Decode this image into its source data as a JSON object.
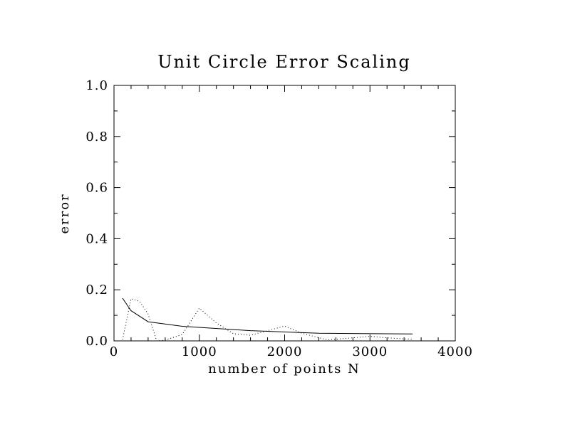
{
  "chart_data": {
    "type": "line",
    "title": "Unit Circle Error Scaling",
    "xlabel": "number of points N",
    "ylabel": "error",
    "xlim": [
      0,
      4000
    ],
    "ylim": [
      0.0,
      1.0
    ],
    "x_ticks": [
      0,
      1000,
      2000,
      3000,
      4000
    ],
    "x_tick_labels": [
      "0",
      "1000",
      "2000",
      "3000",
      "4000"
    ],
    "y_ticks": [
      0.0,
      0.2,
      0.4,
      0.6,
      0.8,
      1.0
    ],
    "y_tick_labels": [
      "0.0",
      "0.2",
      "0.4",
      "0.6",
      "0.8",
      "1.0"
    ],
    "grid": false,
    "series": [
      {
        "name": "error (solid)",
        "style": "solid",
        "x": [
          100,
          200,
          400,
          800,
          1600,
          2400,
          3500
        ],
        "y": [
          0.167,
          0.118,
          0.075,
          0.057,
          0.04,
          0.03,
          0.027
        ]
      },
      {
        "name": "error (dotted)",
        "style": "dotted",
        "x": [
          100,
          200,
          300,
          400,
          500,
          600,
          800,
          1000,
          1200,
          1400,
          1600,
          1800,
          2000,
          2200,
          2500,
          2800,
          3000,
          3200,
          3500
        ],
        "y": [
          0.005,
          0.165,
          0.155,
          0.105,
          0.0,
          0.003,
          0.025,
          0.128,
          0.07,
          0.028,
          0.022,
          0.04,
          0.058,
          0.03,
          0.004,
          0.012,
          0.018,
          0.012,
          0.006
        ]
      }
    ]
  }
}
